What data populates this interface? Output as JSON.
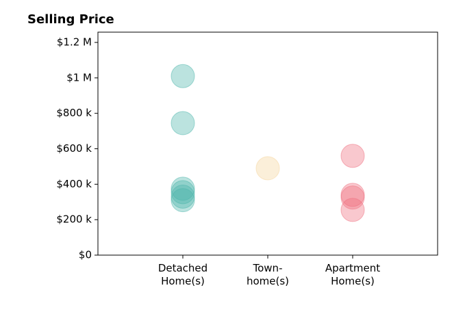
{
  "chart_data": {
    "type": "scatter",
    "title": "Selling Price",
    "categories": [
      "Detached\nHome(s)",
      "Town-\nhome(s)",
      "Apartment\nHome(s)"
    ],
    "values": [
      [
        1010000,
        745000,
        375000,
        355000,
        330000,
        310000
      ],
      [
        490000
      ],
      [
        560000,
        340000,
        325000,
        255000
      ]
    ],
    "colors": [
      "#4db6ac",
      "#f5d49a",
      "#ef6f7f"
    ],
    "ylim": [
      0,
      1258000
    ],
    "yticks": [
      {
        "value": 0,
        "label": "$0"
      },
      {
        "value": 200000,
        "label": "$200 k"
      },
      {
        "value": 400000,
        "label": "$400 k"
      },
      {
        "value": 600000,
        "label": "$600 k"
      },
      {
        "value": 800000,
        "label": "$800 k"
      },
      {
        "value": 1000000,
        "label": "$1 M"
      },
      {
        "value": 1200000,
        "label": "$1.2 M"
      }
    ],
    "grid": false
  }
}
